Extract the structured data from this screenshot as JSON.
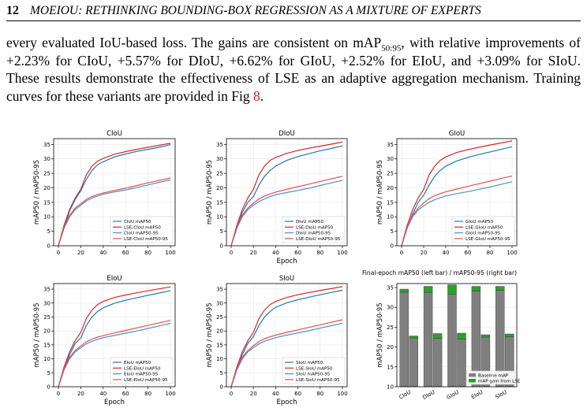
{
  "header": {
    "page_number": "12",
    "running_title": "MOEIOU: RETHINKING BOUNDING-BOX REGRESSION AS A MIXTURE OF EXPERTS"
  },
  "paragraph": {
    "t1": "every evaluated IoU-based loss.  The gains are consistent on mAP",
    "sub": "50:95",
    "t2": ", with relative improvements of +2.23% for CIoU, +5.57% for DIoU, +6.62% for GIoU, +2.52% for EIoU, and +3.09% for SIoU. These results demonstrate the effectiveness of LSE as an adaptive aggregation mechanism. Training curves for these variants are provided in Fig ",
    "ref": "8",
    "t3": "."
  },
  "colors": {
    "baseline_map50": "#1f77b4",
    "lse_map50": "#d62728",
    "bar_base": "#7f7f7f",
    "bar_gain": "#2ca02c"
  },
  "chart_data": [
    {
      "type": "line",
      "title": "CIoU",
      "xlabel": "",
      "ylabel": "mAP50 / mAP50-95",
      "xlim": [
        0,
        100
      ],
      "xticks": [
        0,
        20,
        40,
        60,
        80,
        100
      ],
      "yticks": [
        0,
        5,
        10,
        15,
        20,
        25,
        30,
        35
      ],
      "grid": true,
      "legend_position": "lower right",
      "series": [
        {
          "name": "CIoU mAP50",
          "color": "#1f77b4",
          "x": [
            0,
            5,
            10,
            15,
            20,
            25,
            30,
            35,
            40,
            50,
            60,
            70,
            80,
            90,
            100
          ],
          "y": [
            0,
            6,
            12,
            16,
            19,
            23,
            26,
            28,
            29,
            30.7,
            31.7,
            32.6,
            33.3,
            34,
            34.9
          ]
        },
        {
          "name": "LSE-CIoU mAP50",
          "color": "#d62728",
          "x": [
            0,
            5,
            10,
            15,
            20,
            25,
            30,
            35,
            40,
            50,
            60,
            70,
            80,
            90,
            100
          ],
          "y": [
            0,
            7,
            12.5,
            16.5,
            19.5,
            24.5,
            27.5,
            29.2,
            30.2,
            31.6,
            32.5,
            33.3,
            34,
            34.7,
            35.4
          ]
        },
        {
          "name": "CIoU mAP50-95",
          "color": "#4a90c8",
          "x": [
            0,
            5,
            10,
            15,
            20,
            25,
            30,
            35,
            40,
            50,
            60,
            70,
            80,
            90,
            100
          ],
          "y": [
            0,
            6,
            10,
            12.5,
            14,
            15.5,
            16.5,
            17.2,
            17.8,
            18.6,
            19.3,
            20.1,
            21,
            21.9,
            22.8
          ]
        },
        {
          "name": "LSE-CIoU mAP50-95",
          "color": "#e0504f",
          "x": [
            0,
            5,
            10,
            15,
            20,
            25,
            30,
            35,
            40,
            50,
            60,
            70,
            80,
            90,
            100
          ],
          "y": [
            0,
            6.5,
            10.5,
            13,
            14.5,
            16,
            17,
            17.7,
            18.2,
            19.1,
            19.9,
            20.8,
            21.7,
            22.6,
            23.4
          ]
        }
      ]
    },
    {
      "type": "line",
      "title": "DIoU",
      "xlabel": "Epoch",
      "ylabel": "mAP50 / mAP50-95",
      "xlim": [
        0,
        100
      ],
      "xticks": [
        0,
        20,
        40,
        60,
        80,
        100
      ],
      "yticks": [
        0,
        5,
        10,
        15,
        20,
        25,
        30,
        35
      ],
      "grid": true,
      "legend_position": "lower right",
      "series": [
        {
          "name": "DIoU mAP50",
          "color": "#1f77b4",
          "x": [
            0,
            5,
            10,
            15,
            20,
            25,
            30,
            35,
            40,
            50,
            60,
            70,
            80,
            90,
            100
          ],
          "y": [
            0,
            6,
            11.5,
            15,
            17,
            21,
            24,
            26,
            27.5,
            29.5,
            30.8,
            31.8,
            32.8,
            33.6,
            34.5
          ]
        },
        {
          "name": "LSE-DIoU mAP50",
          "color": "#d62728",
          "x": [
            0,
            5,
            10,
            15,
            20,
            25,
            30,
            35,
            40,
            50,
            60,
            70,
            80,
            90,
            100
          ],
          "y": [
            0,
            7,
            12.5,
            16.5,
            19.5,
            24.5,
            27.5,
            29.5,
            30.5,
            31.9,
            32.9,
            33.7,
            34.4,
            35.1,
            35.8
          ]
        },
        {
          "name": "DIoU mAP50-95",
          "color": "#4a90c8",
          "x": [
            0,
            5,
            10,
            15,
            20,
            25,
            30,
            35,
            40,
            50,
            60,
            70,
            80,
            90,
            100
          ],
          "y": [
            0,
            6,
            10,
            12.5,
            14,
            15.3,
            16.2,
            17,
            17.6,
            18.4,
            19.1,
            19.9,
            20.8,
            21.7,
            22.6
          ]
        },
        {
          "name": "LSE-DIoU mAP50-95",
          "color": "#e0504f",
          "x": [
            0,
            5,
            10,
            15,
            20,
            25,
            30,
            35,
            40,
            50,
            60,
            70,
            80,
            90,
            100
          ],
          "y": [
            0,
            6.5,
            10.5,
            13,
            14.7,
            16.2,
            17.2,
            17.9,
            18.5,
            19.5,
            20.4,
            21.3,
            22.2,
            23.1,
            24
          ]
        }
      ]
    },
    {
      "type": "line",
      "title": "GIoU",
      "xlabel": "",
      "ylabel": "mAP50 / mAP50-95",
      "xlim": [
        0,
        100
      ],
      "xticks": [
        0,
        20,
        40,
        60,
        80,
        100
      ],
      "yticks": [
        0,
        5,
        10,
        15,
        20,
        25,
        30,
        35
      ],
      "grid": true,
      "legend_position": "lower right",
      "series": [
        {
          "name": "GIoU mAP50",
          "color": "#1f77b4",
          "x": [
            0,
            5,
            10,
            15,
            20,
            25,
            30,
            35,
            40,
            50,
            60,
            70,
            80,
            90,
            100
          ],
          "y": [
            0,
            6,
            11,
            15,
            17.5,
            21,
            24,
            26,
            27.5,
            29.3,
            30.5,
            31.5,
            32.4,
            33.3,
            34.2
          ]
        },
        {
          "name": "LSE-GIoU mAP50",
          "color": "#d62728",
          "x": [
            0,
            5,
            10,
            15,
            20,
            25,
            30,
            35,
            40,
            50,
            60,
            70,
            80,
            90,
            100
          ],
          "y": [
            0,
            7,
            12.5,
            16.5,
            19.5,
            24.5,
            27.5,
            29.5,
            30.7,
            32.2,
            33.2,
            34,
            34.8,
            35.5,
            36.2
          ]
        },
        {
          "name": "GIoU mAP50-95",
          "color": "#4a90c8",
          "x": [
            0,
            5,
            10,
            15,
            20,
            25,
            30,
            35,
            40,
            50,
            60,
            70,
            80,
            90,
            100
          ],
          "y": [
            0,
            6,
            10,
            12.3,
            13.8,
            15,
            15.9,
            16.6,
            17.2,
            18,
            18.7,
            19.5,
            20.3,
            21.2,
            22.1
          ]
        },
        {
          "name": "LSE-GIoU mAP50-95",
          "color": "#e0504f",
          "x": [
            0,
            5,
            10,
            15,
            20,
            25,
            30,
            35,
            40,
            50,
            60,
            70,
            80,
            90,
            100
          ],
          "y": [
            0,
            6.5,
            10.5,
            13,
            14.8,
            16.3,
            17.3,
            18,
            18.6,
            19.6,
            20.5,
            21.4,
            22.3,
            23.2,
            24.1
          ]
        }
      ]
    },
    {
      "type": "line",
      "title": "EIoU",
      "xlabel": "Epoch",
      "ylabel": "mAP50 / mAP50-95",
      "xlim": [
        0,
        100
      ],
      "xticks": [
        0,
        20,
        40,
        60,
        80,
        100
      ],
      "yticks": [
        0,
        5,
        10,
        15,
        20,
        25,
        30,
        35
      ],
      "grid": true,
      "legend_position": "lower right",
      "series": [
        {
          "name": "EIoU mAP50",
          "color": "#1f77b4",
          "x": [
            0,
            5,
            10,
            15,
            20,
            25,
            30,
            35,
            40,
            50,
            60,
            70,
            80,
            90,
            100
          ],
          "y": [
            0,
            6,
            11.5,
            15.5,
            17.5,
            22,
            25,
            27,
            28.3,
            29.9,
            31,
            31.9,
            32.8,
            33.6,
            34.4
          ]
        },
        {
          "name": "LSE-EIoU mAP50",
          "color": "#d62728",
          "x": [
            0,
            5,
            10,
            15,
            20,
            25,
            30,
            35,
            40,
            50,
            60,
            70,
            80,
            90,
            100
          ],
          "y": [
            0,
            7,
            12.5,
            16.5,
            19.5,
            24.5,
            27.5,
            29.5,
            30.6,
            32,
            32.9,
            33.7,
            34.4,
            35.1,
            35.8
          ]
        },
        {
          "name": "EIoU mAP50-95",
          "color": "#4a90c8",
          "x": [
            0,
            5,
            10,
            15,
            20,
            25,
            30,
            35,
            40,
            50,
            60,
            70,
            80,
            90,
            100
          ],
          "y": [
            0,
            6,
            10,
            12.5,
            14,
            15.4,
            16.3,
            17,
            17.6,
            18.4,
            19.2,
            20,
            20.9,
            21.8,
            22.7
          ]
        },
        {
          "name": "LSE-EIoU mAP50-95",
          "color": "#e0504f",
          "x": [
            0,
            5,
            10,
            15,
            20,
            25,
            30,
            35,
            40,
            50,
            60,
            70,
            80,
            90,
            100
          ],
          "y": [
            0,
            6.5,
            10.5,
            13,
            14.6,
            16.1,
            17.1,
            17.8,
            18.3,
            19.3,
            20.2,
            21.1,
            22,
            22.9,
            23.8
          ]
        }
      ]
    },
    {
      "type": "line",
      "title": "SIoU",
      "xlabel": "Epoch",
      "ylabel": "mAP50 / mAP50-95",
      "xlim": [
        0,
        100
      ],
      "xticks": [
        0,
        20,
        40,
        60,
        80,
        100
      ],
      "yticks": [
        0,
        5,
        10,
        15,
        20,
        25,
        30,
        35
      ],
      "grid": true,
      "legend_position": "lower right",
      "series": [
        {
          "name": "SIoU mAP50",
          "color": "#1f77b4",
          "x": [
            0,
            5,
            10,
            15,
            20,
            25,
            30,
            35,
            40,
            50,
            60,
            70,
            80,
            90,
            100
          ],
          "y": [
            0,
            6,
            11.5,
            15.5,
            18,
            22,
            25,
            27,
            28.5,
            30.1,
            31.2,
            32.1,
            33,
            33.8,
            34.6
          ]
        },
        {
          "name": "LSE-SIoU mAP50",
          "color": "#d62728",
          "x": [
            0,
            5,
            10,
            15,
            20,
            25,
            30,
            35,
            40,
            50,
            60,
            70,
            80,
            90,
            100
          ],
          "y": [
            0,
            7,
            12.5,
            16.5,
            19.5,
            24.5,
            27.5,
            29.5,
            30.6,
            32,
            33,
            33.8,
            34.5,
            35.2,
            35.9
          ]
        },
        {
          "name": "SIoU mAP50-95",
          "color": "#4a90c8",
          "x": [
            0,
            5,
            10,
            15,
            20,
            25,
            30,
            35,
            40,
            50,
            60,
            70,
            80,
            90,
            100
          ],
          "y": [
            0,
            6,
            10,
            12.5,
            14,
            15.4,
            16.3,
            17,
            17.6,
            18.5,
            19.3,
            20.1,
            21,
            21.9,
            22.8
          ]
        },
        {
          "name": "LSE-SIoU mAP50-95",
          "color": "#e0504f",
          "x": [
            0,
            5,
            10,
            15,
            20,
            25,
            30,
            35,
            40,
            50,
            60,
            70,
            80,
            90,
            100
          ],
          "y": [
            0,
            6.5,
            10.5,
            13,
            14.7,
            16.2,
            17.2,
            17.9,
            18.5,
            19.5,
            20.4,
            21.3,
            22.2,
            23.1,
            24
          ]
        }
      ]
    },
    {
      "type": "bar",
      "title": "Final-epoch mAP50 (left bar) / mAP50-95 (right bar)",
      "xlabel": "",
      "ylabel": "mAP50 / mAP50-95",
      "ylim": [
        10,
        36
      ],
      "yticks": [
        10,
        15,
        20,
        25,
        30,
        35
      ],
      "categories": [
        "CIoU",
        "DIoU",
        "GIoU",
        "EIoU",
        "SIoU"
      ],
      "legend_position": "lower right",
      "series": [
        {
          "name": "Baseline mAP",
          "color": "#7f7f7f",
          "map50": [
            33.8,
            33.8,
            33.3,
            34.1,
            34.3
          ],
          "map50_95": [
            22.3,
            22.2,
            22.0,
            22.5,
            22.6
          ]
        },
        {
          "name": "mAP gain from LSE",
          "color": "#2ca02c",
          "map50": [
            0.8,
            1.5,
            2.4,
            1.2,
            1.0
          ],
          "map50_95": [
            0.5,
            1.2,
            1.5,
            0.6,
            0.7
          ]
        }
      ]
    }
  ]
}
